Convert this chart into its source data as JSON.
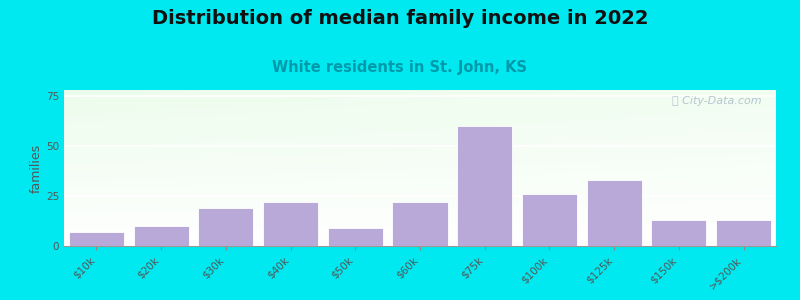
{
  "title": "Distribution of median family income in 2022",
  "subtitle": "White residents in St. John, KS",
  "ylabel": "families",
  "categories": [
    "$10k",
    "$20k",
    "$30k",
    "$40k",
    "$50k",
    "$60k",
    "$75k",
    "$100k",
    "$125k",
    "$150k",
    ">$200k"
  ],
  "values": [
    7,
    10,
    19,
    22,
    9,
    22,
    60,
    26,
    33,
    13,
    13
  ],
  "bar_color": "#b8a9d9",
  "bar_edge_color": "#ffffff",
  "background_outer": "#00e8f0",
  "grid_color": "#ffffff",
  "yticks": [
    0,
    25,
    50,
    75
  ],
  "ylim": [
    0,
    78
  ],
  "title_fontsize": 14,
  "subtitle_fontsize": 10.5,
  "subtitle_color": "#009aaa",
  "ylabel_fontsize": 9,
  "ylabel_color": "#555555",
  "tick_label_fontsize": 7.5,
  "tick_label_color": "#555555",
  "watermark_text": "ⓘ City-Data.com",
  "watermark_color": "#aabbcc"
}
